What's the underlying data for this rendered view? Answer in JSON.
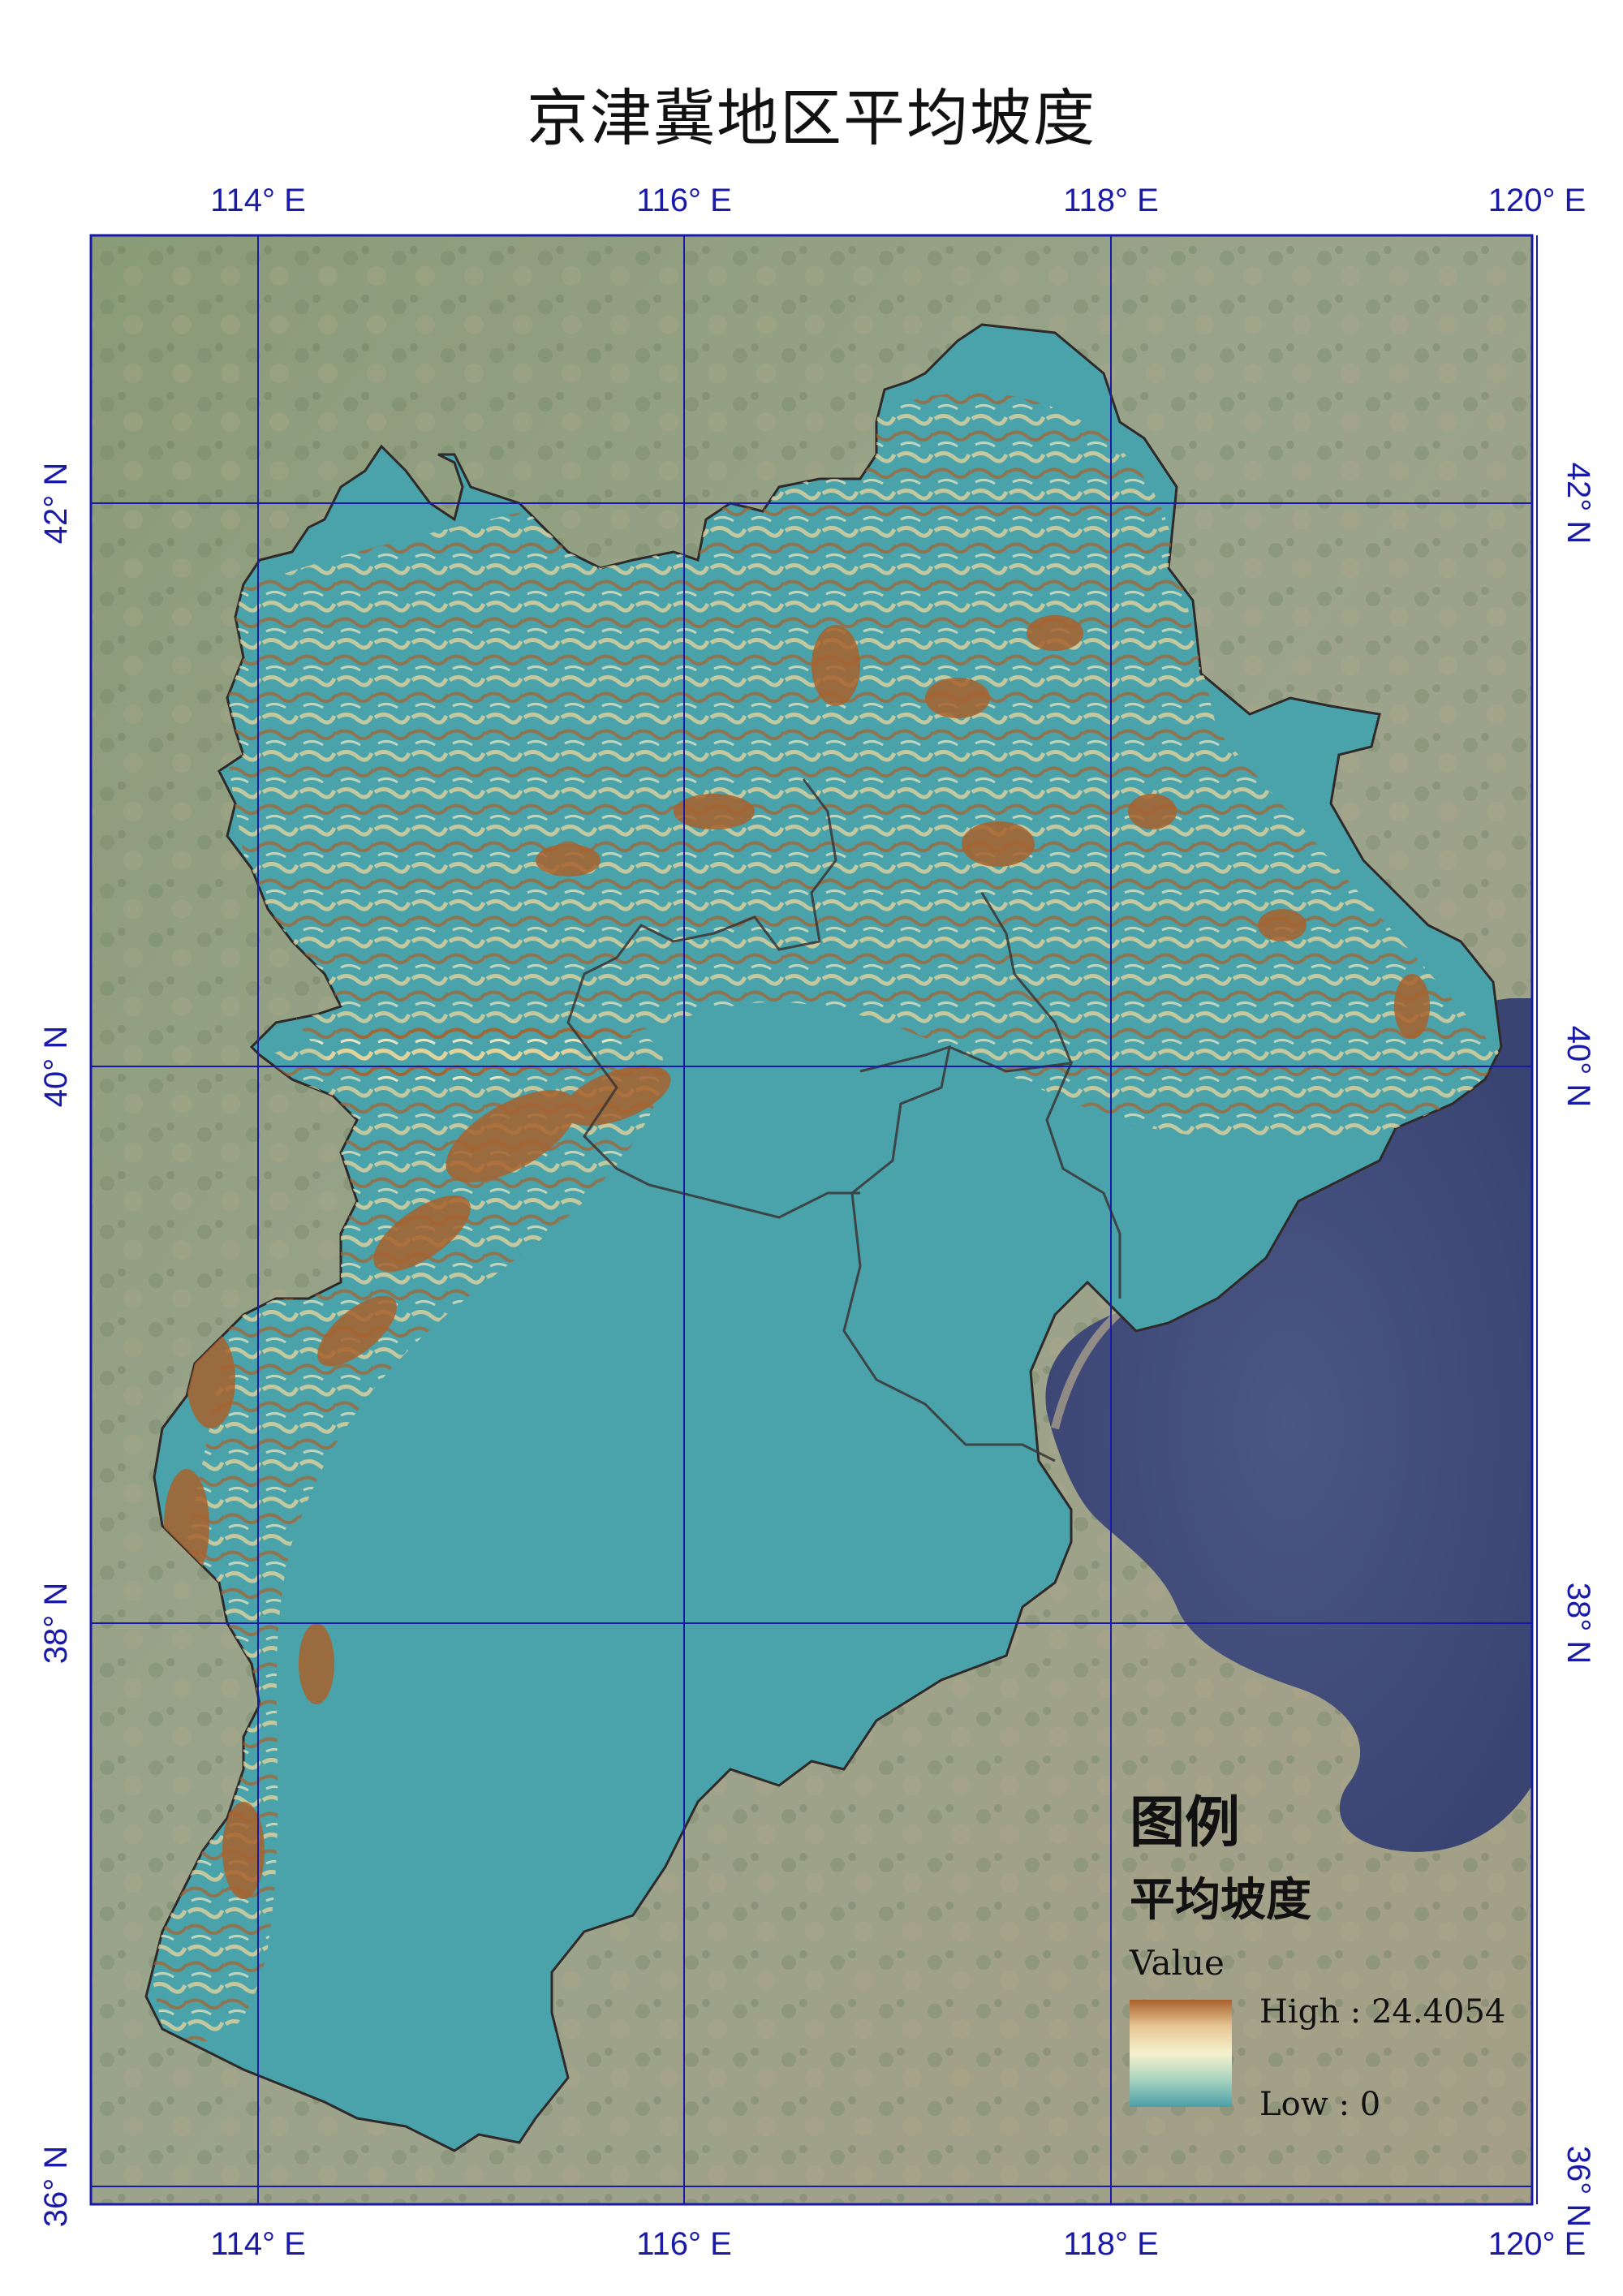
{
  "title": "京津冀地区平均坡度",
  "axes": {
    "longitude_ticks": [
      "114° E",
      "116° E",
      "118° E",
      "120° E"
    ],
    "latitude_ticks": [
      "42° N",
      "40° N",
      "38° N",
      "36° N"
    ]
  },
  "legend": {
    "title": "图例",
    "layer_name": "平均坡度",
    "field_label": "Value",
    "high_label": "High : 24.4054",
    "low_label": "Low : 0",
    "ramp_colors": [
      "#a9612c",
      "#e7c795",
      "#f6f2cd",
      "#a7d3c0",
      "#4b9ea8"
    ]
  },
  "colors": {
    "graticule": "#1a1aa8",
    "sea": "#3f4d7e",
    "region_fill": "#4aa2aa",
    "steep_slope": "#a9612c"
  }
}
